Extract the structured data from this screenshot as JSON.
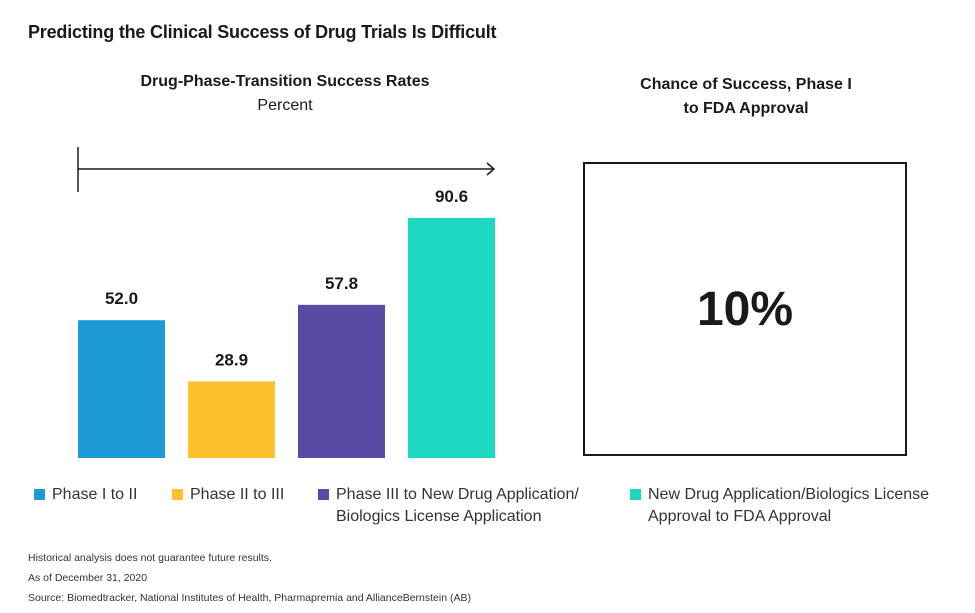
{
  "main_title": "Predicting the Clinical Success of Drug Trials Is Difficult",
  "chart_data": {
    "type": "bar",
    "title": "Drug-Phase-Transition Success Rates",
    "subtitle": "Percent",
    "categories": [
      "Phase I to II",
      "Phase II to III",
      "Phase III to New Drug Application/ Biologics License Application",
      "New Drug Application/Biologics License Approval to FDA Approval"
    ],
    "values": [
      52.0,
      28.9,
      57.8,
      90.6
    ],
    "value_labels": [
      "52.0",
      "28.9",
      "57.8",
      "90.6"
    ],
    "colors": [
      "#1E9AD6",
      "#FEC02C",
      "#5A4AA6",
      "#1DD8C1"
    ],
    "xlabel": "",
    "ylabel": "",
    "ylim": [
      0,
      100
    ],
    "grid": false,
    "legend_position": "bottom"
  },
  "side_panel": {
    "title_line1": "Chance of Success, Phase I",
    "title_line2": "to FDA Approval",
    "value": "10%"
  },
  "legend": {
    "items": [
      {
        "line1": "Phase I to II",
        "line2": "",
        "color": "#1E9AD6"
      },
      {
        "line1": "Phase II to III",
        "line2": "",
        "color": "#FEC02C"
      },
      {
        "line1": "Phase III to New Drug Application/",
        "line2": "Biologics License Application",
        "color": "#5A4AA6"
      },
      {
        "line1": "New Drug Application/Biologics License",
        "line2": "Approval to FDA Approval",
        "color": "#1DD8C1"
      }
    ]
  },
  "notes": {
    "disclaimer": "Historical analysis does not guarantee future results.",
    "date": "As of December 31, 2020",
    "source": "Source: Biomedtracker, National Institutes of Health, Pharmapremia and AllianceBernstein (AB)"
  }
}
